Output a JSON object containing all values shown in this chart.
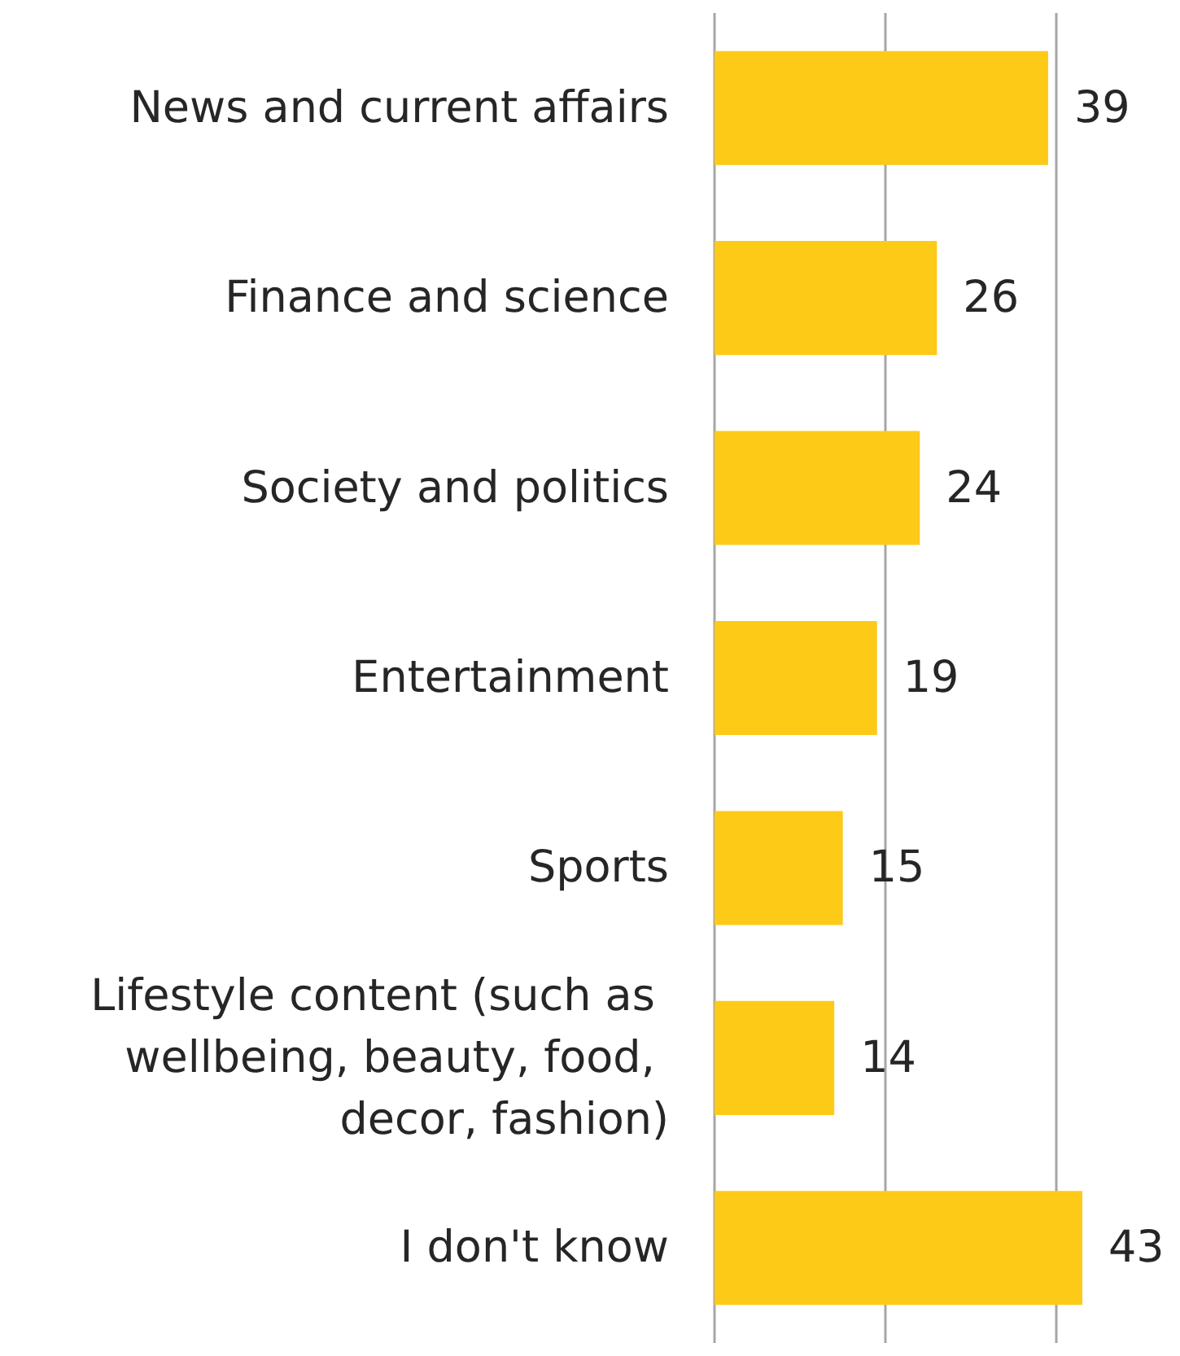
{
  "chart_data": {
    "type": "bar",
    "orientation": "horizontal",
    "categories": [
      "News and current affairs",
      "Finance and science",
      "Society and politics",
      "Entertainment",
      "Sports",
      "Lifestyle content (such as wellbeing, beauty, food, decor, fashion)",
      "I don't know"
    ],
    "values": [
      39,
      26,
      24,
      19,
      15,
      14,
      43
    ],
    "color": "#fdca17",
    "ref_lines": [
      {
        "axis": "x",
        "value": 0,
        "color": "#a6a6a6"
      },
      {
        "axis": "x",
        "value": 20,
        "color": "#a6a6a6"
      },
      {
        "axis": "x",
        "value": 40,
        "color": "#a6a6a6"
      }
    ],
    "tick_labels": "y",
    "data_labels": true
  }
}
